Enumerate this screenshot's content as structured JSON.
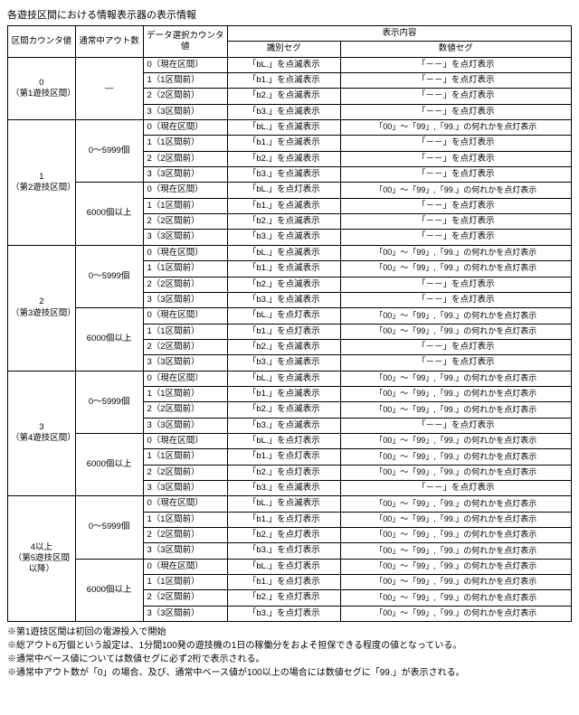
{
  "title": "各遊技区間における情報表示器の表示情報",
  "headers": {
    "col1": "区間カウンタ値",
    "col2": "通常中アウト数",
    "col3": "データ選択カウンタ値",
    "disp": "表示内容",
    "segId": "識別セグ",
    "segNum": "数値セグ"
  },
  "labels": {
    "ds0": "0（現在区間）",
    "ds1": "1（1区間前）",
    "ds2": "2（2区間前）",
    "ds3": "3（3区間前）",
    "bL_blink": "「bL.」を点滅表示",
    "b1_blink": "「b1.」を点滅表示",
    "b2_blink": "「b2.」を点滅表示",
    "b3_blink": "「b3.」を点滅表示",
    "bL_on": "「bL.」を点灯表示",
    "b1_on": "「b1.」を点灯表示",
    "b2_on": "「b2.」を点灯表示",
    "b3_on": "「b3.」を点灯表示",
    "dash_on": "「－－」を点灯表示",
    "range_on": "「00」～「99」,「99.」の何れかを点灯表示",
    "out_low": "0～5999個",
    "out_high": "6000個以上",
    "none": "—"
  },
  "rows": {
    "r0": "0\n（第1遊技区間）",
    "r1": "1\n（第2遊技区間）",
    "r2": "2\n（第3遊技区間）",
    "r3": "3\n（第4遊技区間）",
    "r4": "4以上\n（第5遊技区間以降）"
  },
  "notes": [
    "※第1遊技区間は初回の電源投入で開始",
    "※総アウト6万個という設定は、1分間100発の遊技機の1日の稼働分をおよそ担保できる程度の値となっている。",
    "※通常中ベース値については数値セグに必ず2桁で表示される。",
    "※通常中アウト数が「0」の場合、及び、通常中ベース値が100以上の場合には数値セグに「99.」が表示される。"
  ]
}
